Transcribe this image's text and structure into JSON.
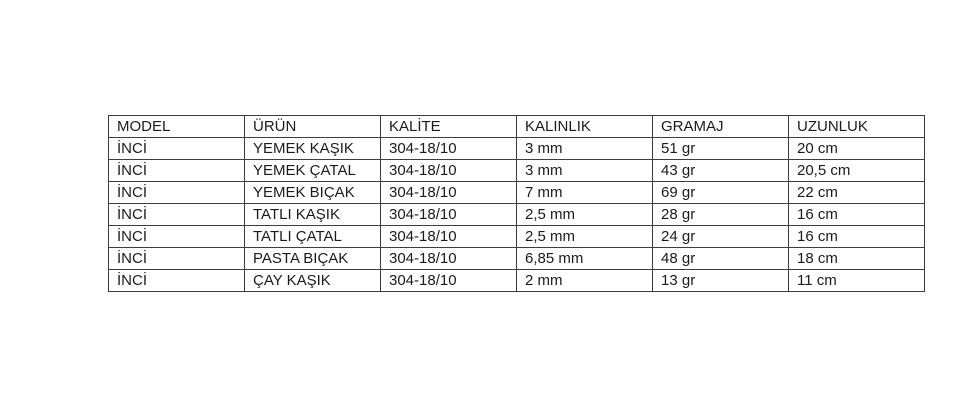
{
  "table": {
    "name": "product-spec-table",
    "headers": [
      "MODEL",
      "ÜRÜN",
      "KALİTE",
      "KALINLIK",
      "GRAMAJ",
      "UZUNLUK"
    ],
    "rows": [
      [
        "İNCİ",
        "YEMEK KAŞIK",
        "304-18/10",
        "3 mm",
        "51 gr",
        "20 cm"
      ],
      [
        "İNCİ",
        "YEMEK ÇATAL",
        "304-18/10",
        "3 mm",
        "43 gr",
        "20,5 cm"
      ],
      [
        "İNCİ",
        "YEMEK BIÇAK",
        "304-18/10",
        "7 mm",
        "69 gr",
        "22 cm"
      ],
      [
        "İNCİ",
        "TATLI KAŞIK",
        "304-18/10",
        "2,5 mm",
        "28 gr",
        "16 cm"
      ],
      [
        "İNCİ",
        "TATLI ÇATAL",
        "304-18/10",
        "2,5 mm",
        "24 gr",
        "16 cm"
      ],
      [
        "İNCİ",
        "PASTA BIÇAK",
        "304-18/10",
        "6,85 mm",
        "48 gr",
        "18 cm"
      ],
      [
        "İNCİ",
        "ÇAY KAŞIK",
        "304-18/10",
        "2 mm",
        "13 gr",
        "11 cm"
      ]
    ],
    "colors": {
      "border": "#3d3d3d",
      "text": "#1b1b1b",
      "background": "#ffffff"
    }
  }
}
